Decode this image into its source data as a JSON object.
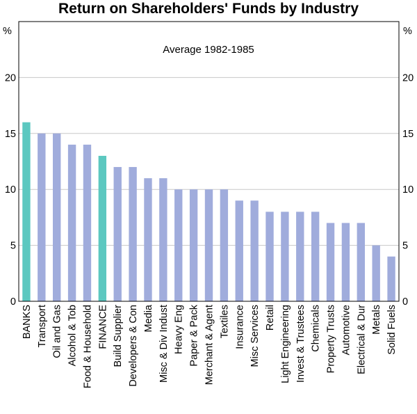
{
  "chart_data": {
    "type": "bar",
    "title": "Return on Shareholders' Funds by Industry",
    "subtitle": "Average 1982-1985",
    "unit_left": "%",
    "unit_right": "%",
    "ylim": [
      0,
      25
    ],
    "yticks": [
      0,
      5,
      10,
      15,
      20
    ],
    "grid": true,
    "categories": [
      "BANKS",
      "Transport",
      "Oil and Gas",
      "Alcohol & Tob",
      "Food & Household",
      "FINANCE",
      "Build Supplier",
      "Developers & Con",
      "Media",
      "Misc & Div Indust",
      "Heavy Eng",
      "Paper & Pack",
      "Merchant & Agent",
      "Textiles",
      "Insurance",
      "Misc Services",
      "Retail",
      "Light Engineering",
      "Invest & Trustees",
      "Chemicals",
      "Property Trusts",
      "Automotive",
      "Electrical & Dur",
      "Metals",
      "Solid Fuels"
    ],
    "values": [
      16,
      15,
      15,
      14,
      14,
      13,
      12,
      12,
      11,
      11,
      10,
      10,
      10,
      10,
      9,
      9,
      8,
      8,
      8,
      8,
      7,
      7,
      7,
      5,
      4
    ],
    "highlighted": [
      "BANKS",
      "FINANCE"
    ],
    "colors": {
      "bar": "#a0acdc",
      "highlight": "#5cc8c0",
      "grid": "#c8c8c8",
      "axis": "#000000"
    }
  }
}
